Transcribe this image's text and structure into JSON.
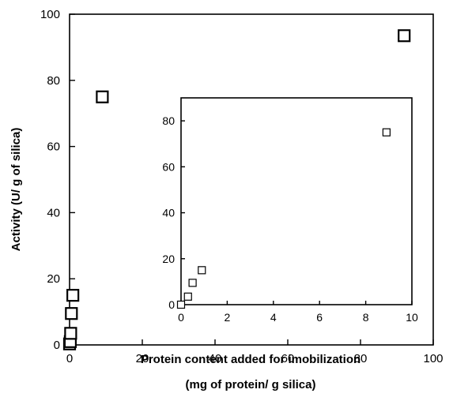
{
  "chart_data": [
    {
      "type": "scatter",
      "title": "",
      "xlabel_line1": "Protein content added for imobilization",
      "xlabel_line2": "(mg of protein/ g silica)",
      "ylabel": "Activity (U/ g of silica)",
      "xlim": [
        0,
        100
      ],
      "ylim": [
        0,
        100
      ],
      "xticks": [
        0,
        20,
        40,
        60,
        80,
        100
      ],
      "yticks": [
        0,
        20,
        40,
        60,
        80,
        100
      ],
      "grid": false,
      "marker": "open-square",
      "series": [
        {
          "x": [
            0,
            0.2,
            0.3,
            0.5,
            0.9,
            9.0,
            92.0
          ],
          "y": [
            0.3,
            1.0,
            3.5,
            9.5,
            15.0,
            75.0,
            93.5
          ]
        }
      ]
    },
    {
      "type": "scatter",
      "title": "",
      "inset": true,
      "xlim": [
        0,
        10
      ],
      "ylim": [
        0,
        90
      ],
      "xticks": [
        0,
        2,
        4,
        6,
        8,
        10
      ],
      "yticks": [
        0,
        20,
        40,
        60,
        80
      ],
      "grid": false,
      "marker": "open-square",
      "series": [
        {
          "x": [
            0,
            0.3,
            0.5,
            0.9,
            8.9
          ],
          "y": [
            0,
            3.5,
            9.5,
            15.0,
            75.0
          ]
        }
      ]
    }
  ]
}
